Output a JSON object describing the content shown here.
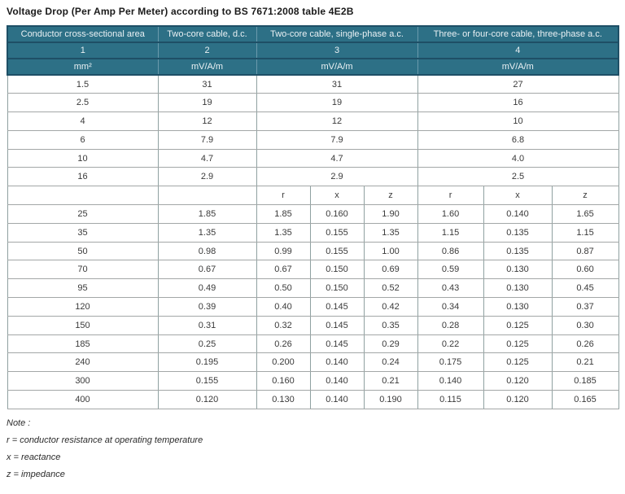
{
  "title": "Voltage Drop (Per Amp Per Meter) according to BS 7671:2008 table 4E2B",
  "colors": {
    "header_bg": "#2d7086",
    "header_divider": "#1e4f66",
    "header_divider_vertical": "#6a9aac",
    "body_border": "#9ba3a3"
  },
  "table": {
    "column_headers": [
      "Conductor cross-sectional area",
      "Two-core cable, d.c.",
      "Two-core cable, single-phase a.c.",
      "Three- or four-core cable, three-phase a.c."
    ],
    "column_numbers": [
      "1",
      "2",
      "3",
      "4"
    ],
    "units": [
      "mm²",
      "mV/A/m",
      "mV/A/m",
      "mV/A/m"
    ],
    "sub_headers": [
      "r",
      "x",
      "z",
      "r",
      "x",
      "z"
    ],
    "simple_rows": [
      [
        "1.5",
        "31",
        "31",
        "27"
      ],
      [
        "2.5",
        "19",
        "19",
        "16"
      ],
      [
        "4",
        "12",
        "12",
        "10"
      ],
      [
        "6",
        "7.9",
        "7.9",
        "6.8"
      ],
      [
        "10",
        "4.7",
        "4.7",
        "4.0"
      ],
      [
        "16",
        "2.9",
        "2.9",
        "2.5"
      ]
    ],
    "complex_rows": [
      [
        "25",
        "1.85",
        "1.85",
        "0.160",
        "1.90",
        "1.60",
        "0.140",
        "1.65"
      ],
      [
        "35",
        "1.35",
        "1.35",
        "0.155",
        "1.35",
        "1.15",
        "0.135",
        "1.15"
      ],
      [
        "50",
        "0.98",
        "0.99",
        "0.155",
        "1.00",
        "0.86",
        "0.135",
        "0.87"
      ],
      [
        "70",
        "0.67",
        "0.67",
        "0.150",
        "0.69",
        "0.59",
        "0.130",
        "0.60"
      ],
      [
        "95",
        "0.49",
        "0.50",
        "0.150",
        "0.52",
        "0.43",
        "0.130",
        "0.45"
      ],
      [
        "120",
        "0.39",
        "0.40",
        "0.145",
        "0.42",
        "0.34",
        "0.130",
        "0.37"
      ],
      [
        "150",
        "0.31",
        "0.32",
        "0.145",
        "0.35",
        "0.28",
        "0.125",
        "0.30"
      ],
      [
        "185",
        "0.25",
        "0.26",
        "0.145",
        "0.29",
        "0.22",
        "0.125",
        "0.26"
      ],
      [
        "240",
        "0.195",
        "0.200",
        "0.140",
        "0.24",
        "0.175",
        "0.125",
        "0.21"
      ],
      [
        "300",
        "0.155",
        "0.160",
        "0.140",
        "0.21",
        "0.140",
        "0.120",
        "0.185"
      ],
      [
        "400",
        "0.120",
        "0.130",
        "0.140",
        "0.190",
        "0.115",
        "0.120",
        "0.165"
      ]
    ]
  },
  "notes": [
    "Note :",
    "r = conductor resistance at operating temperature",
    "x = reactance",
    "z = impedance"
  ]
}
